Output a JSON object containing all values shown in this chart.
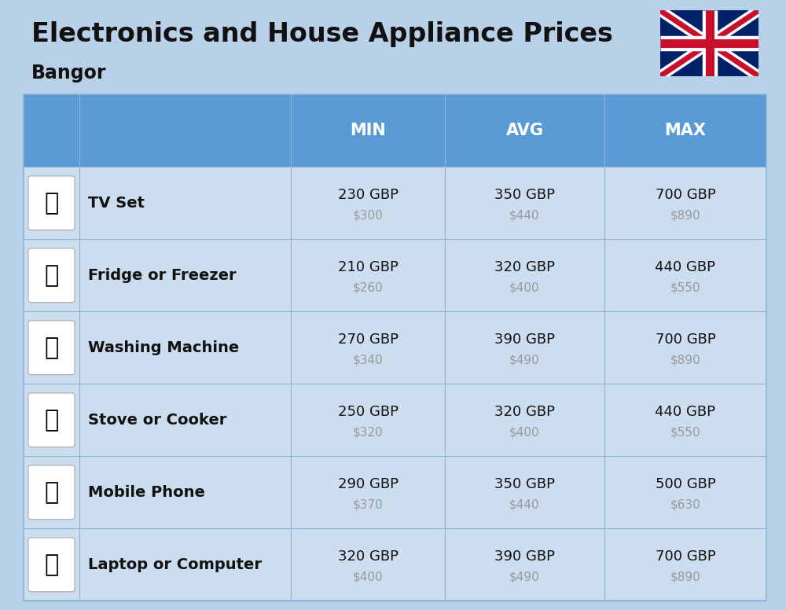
{
  "title": "Electronics and House Appliance Prices",
  "subtitle": "Bangor",
  "background_color": "#b8d0e8",
  "header_color": "#5b9bd5",
  "header_text_color": "#ffffff",
  "row_bg_color": "#ccddf0",
  "col_divider_color": "#8ab4d4",
  "row_divider_color": "#8ab4d4",
  "header_labels": [
    "MIN",
    "AVG",
    "MAX"
  ],
  "items": [
    {
      "name": "TV Set",
      "min_gbp": "230 GBP",
      "min_usd": "$300",
      "avg_gbp": "350 GBP",
      "avg_usd": "$440",
      "max_gbp": "700 GBP",
      "max_usd": "$890"
    },
    {
      "name": "Fridge or Freezer",
      "min_gbp": "210 GBP",
      "min_usd": "$260",
      "avg_gbp": "320 GBP",
      "avg_usd": "$400",
      "max_gbp": "440 GBP",
      "max_usd": "$550"
    },
    {
      "name": "Washing Machine",
      "min_gbp": "270 GBP",
      "min_usd": "$340",
      "avg_gbp": "390 GBP",
      "avg_usd": "$490",
      "max_gbp": "700 GBP",
      "max_usd": "$890"
    },
    {
      "name": "Stove or Cooker",
      "min_gbp": "250 GBP",
      "min_usd": "$320",
      "avg_gbp": "320 GBP",
      "avg_usd": "$400",
      "max_gbp": "440 GBP",
      "max_usd": "$550"
    },
    {
      "name": "Mobile Phone",
      "min_gbp": "290 GBP",
      "min_usd": "$370",
      "avg_gbp": "350 GBP",
      "avg_usd": "$440",
      "max_gbp": "500 GBP",
      "max_usd": "$630"
    },
    {
      "name": "Laptop or Computer",
      "min_gbp": "320 GBP",
      "min_usd": "$400",
      "avg_gbp": "390 GBP",
      "avg_usd": "$490",
      "max_gbp": "700 GBP",
      "max_usd": "$890"
    }
  ],
  "title_fontsize": 24,
  "subtitle_fontsize": 17,
  "header_fontsize": 15,
  "item_name_fontsize": 14,
  "value_fontsize": 13,
  "usd_fontsize": 11,
  "icon_fontsize": 22
}
